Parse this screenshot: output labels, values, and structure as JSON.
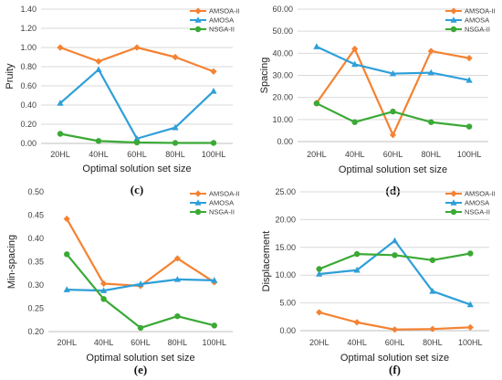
{
  "chart_data": [
    {
      "type": "line",
      "panel_label": "(c)",
      "xlabel": "Optimal solution set size",
      "ylabel": "Pruity",
      "categories": [
        "20HL",
        "40HL",
        "60HL",
        "80HL",
        "100HL"
      ],
      "ylim": [
        0,
        1.4
      ],
      "yticks": [
        "0.00",
        "0.20",
        "0.40",
        "0.60",
        "0.80",
        "1.00",
        "1.20",
        "1.40"
      ],
      "grid": true,
      "legend_position": "top-right",
      "series": [
        {
          "name": "AMSOA-II",
          "color": "#f58232",
          "marker": "diamond",
          "values": [
            1.0,
            0.855,
            1.0,
            0.9,
            0.75
          ]
        },
        {
          "name": "AMOSA",
          "color": "#2e9fd8",
          "marker": "triangle",
          "values": [
            0.42,
            0.77,
            0.05,
            0.165,
            0.545
          ]
        },
        {
          "name": "NSGA-II",
          "color": "#3aa935",
          "marker": "circle",
          "values": [
            0.1,
            0.025,
            0.01,
            0.005,
            0.005
          ]
        }
      ]
    },
    {
      "type": "line",
      "panel_label": "(d)",
      "xlabel": "Optimal solution set size",
      "ylabel": "Spacing",
      "categories": [
        "20HL",
        "40HL",
        "60HL",
        "80HL",
        "100HL"
      ],
      "ylim": [
        0,
        60
      ],
      "yticks": [
        "0.00",
        "10.00",
        "20.00",
        "30.00",
        "40.00",
        "50.00",
        "60.00"
      ],
      "grid": true,
      "legend_position": "top-right",
      "series": [
        {
          "name": "AMSOA-II",
          "color": "#f58232",
          "marker": "diamond",
          "values": [
            17.5,
            42.0,
            3.0,
            41.0,
            37.8
          ]
        },
        {
          "name": "AMOSA",
          "color": "#2e9fd8",
          "marker": "triangle",
          "values": [
            43.0,
            35.0,
            30.8,
            31.2,
            27.8
          ]
        },
        {
          "name": "NSGA-II",
          "color": "#3aa935",
          "marker": "circle",
          "values": [
            17.3,
            8.8,
            13.6,
            8.8,
            6.8
          ]
        }
      ]
    },
    {
      "type": "line",
      "panel_label": "(e)",
      "xlabel": "Optimal solution set size",
      "ylabel": "Min-spacing",
      "categories": [
        "20HL",
        "40HL",
        "60HL",
        "80HL",
        "100HL"
      ],
      "ylim": [
        0.2,
        0.5
      ],
      "yticks": [
        "0.20",
        "0.25",
        "0.30",
        "0.35",
        "0.40",
        "0.45",
        "0.50"
      ],
      "grid": false,
      "legend_position": "top-right",
      "series": [
        {
          "name": "AMSOA-II",
          "color": "#f58232",
          "marker": "diamond",
          "values": [
            0.442,
            0.303,
            0.298,
            0.357,
            0.306
          ]
        },
        {
          "name": "AMOSA",
          "color": "#2e9fd8",
          "marker": "triangle",
          "values": [
            0.29,
            0.288,
            0.302,
            0.312,
            0.31
          ]
        },
        {
          "name": "NSGA-II",
          "color": "#3aa935",
          "marker": "circle",
          "values": [
            0.366,
            0.27,
            0.208,
            0.233,
            0.213
          ]
        }
      ]
    },
    {
      "type": "line",
      "panel_label": "(f)",
      "xlabel": "Optimal solution set size",
      "ylabel": "Displacement",
      "categories": [
        "20HL",
        "40HL",
        "60HL",
        "80HL",
        "100HL"
      ],
      "ylim": [
        0,
        25
      ],
      "yticks": [
        "0.00",
        "5.00",
        "10.00",
        "15.00",
        "20.00",
        "25.00"
      ],
      "grid": true,
      "legend_position": "top-right",
      "series": [
        {
          "name": "AMSOA-II",
          "color": "#f58232",
          "marker": "diamond",
          "values": [
            3.3,
            1.5,
            0.2,
            0.3,
            0.6
          ]
        },
        {
          "name": "AMOSA",
          "color": "#2e9fd8",
          "marker": "triangle",
          "values": [
            10.2,
            10.9,
            16.2,
            7.1,
            4.7
          ]
        },
        {
          "name": "NSGA-II",
          "color": "#3aa935",
          "marker": "circle",
          "values": [
            11.1,
            13.8,
            13.6,
            12.7,
            13.9
          ]
        }
      ]
    }
  ]
}
